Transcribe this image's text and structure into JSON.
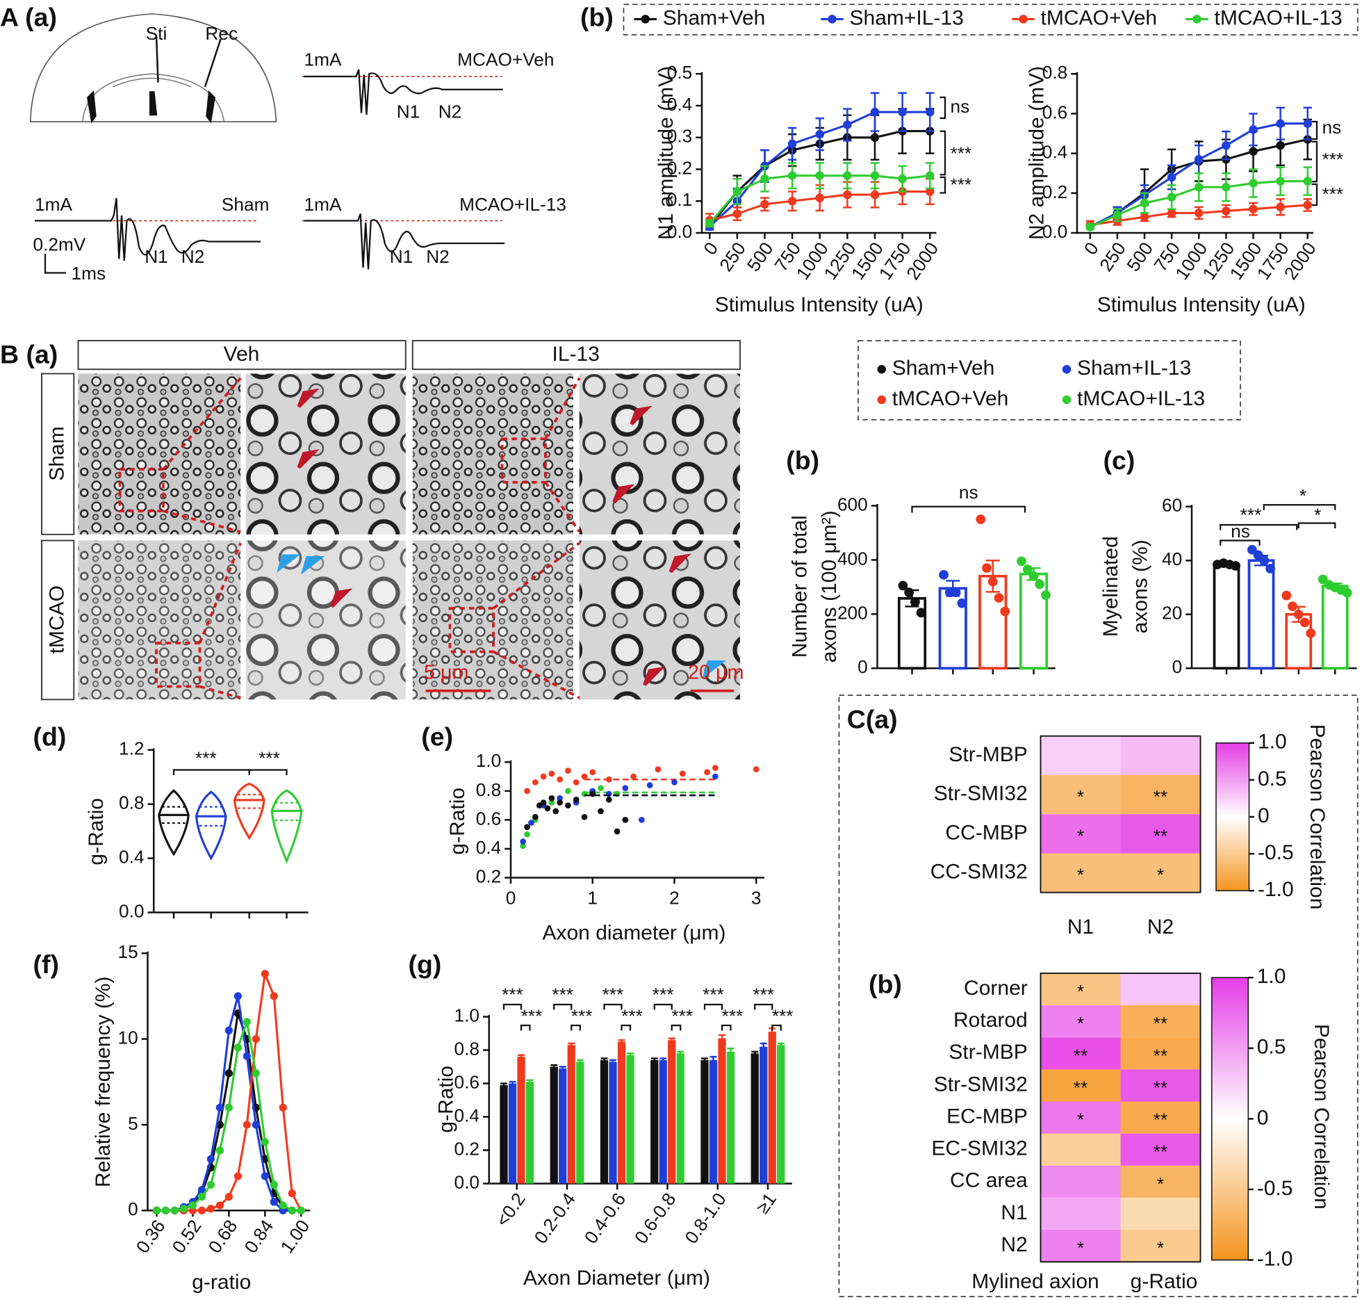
{
  "figure": {
    "panel_A": "A (a)",
    "panel_B": "B (a)"
  },
  "schematic": {
    "stimulus": "Sti",
    "recording": "Rec",
    "scale_y": "0.2mV",
    "scale_x": "1ms",
    "traces": [
      {
        "current": "1mA",
        "label": "MCAO+Veh",
        "peaks": [
          "N1",
          "N2"
        ]
      },
      {
        "current": "1mA",
        "label": "Sham",
        "peaks": [
          "N1",
          "N2"
        ]
      },
      {
        "current": "1mA",
        "label": "MCAO+IL-13",
        "peaks": [
          "N1",
          "N2"
        ]
      }
    ]
  },
  "micrographs": {
    "columns": [
      "Veh",
      "IL-13"
    ],
    "rows": [
      "Sham",
      "tMCAO"
    ],
    "scale_bars": [
      "5 μm",
      "20 μm"
    ]
  },
  "chart_data": [
    {
      "type": "line",
      "panel": "(b)",
      "ylabel": "N1 amplitude (mV)",
      "xlabel": "Stimulus Intensity (uA)",
      "categories": [
        "0",
        "250",
        "500",
        "750",
        "1000",
        "1250",
        "1500",
        "1750",
        "2000"
      ],
      "ylim": [
        0,
        0.5
      ],
      "yticks": [
        {
          "value": 0,
          "label": "0.0"
        },
        0.1,
        0.2,
        0.3,
        0.4,
        0.5
      ],
      "series": [
        {
          "name": "Sham+Veh",
          "color": "#111111",
          "values": [
            0.02,
            0.13,
            0.21,
            0.26,
            0.28,
            0.3,
            0.3,
            0.32,
            0.32
          ],
          "errors": [
            0.01,
            0.05,
            0.05,
            0.05,
            0.05,
            0.07,
            0.07,
            0.07,
            0.07
          ]
        },
        {
          "name": "Sham+IL-13",
          "color": "#1f3fd8",
          "values": [
            0.02,
            0.1,
            0.21,
            0.28,
            0.31,
            0.34,
            0.38,
            0.38,
            0.38
          ],
          "errors": [
            0.01,
            0.04,
            0.05,
            0.05,
            0.05,
            0.05,
            0.06,
            0.06,
            0.06
          ]
        },
        {
          "name": "tMCAO+Veh",
          "color": "#f03a1e",
          "values": [
            0.04,
            0.06,
            0.09,
            0.1,
            0.11,
            0.12,
            0.12,
            0.13,
            0.13
          ],
          "errors": [
            0.02,
            0.02,
            0.02,
            0.03,
            0.04,
            0.04,
            0.04,
            0.04,
            0.04
          ]
        },
        {
          "name": "tMCAO+IL-13",
          "color": "#2ecc30",
          "values": [
            0.03,
            0.13,
            0.17,
            0.18,
            0.18,
            0.18,
            0.18,
            0.17,
            0.18
          ],
          "errors": [
            0.01,
            0.04,
            0.04,
            0.04,
            0.04,
            0.04,
            0.04,
            0.04,
            0.04
          ]
        }
      ],
      "annotations": [
        "ns",
        "***",
        "***"
      ]
    },
    {
      "type": "line",
      "ylabel": "N2 amplitude (mV)",
      "xlabel": "Stimulus Intensity (uA)",
      "categories": [
        "0",
        "250",
        "500",
        "750",
        "1000",
        "1250",
        "1500",
        "1750",
        "2000"
      ],
      "ylim": [
        0,
        0.8
      ],
      "yticks": [
        {
          "value": 0,
          "label": "0.0"
        },
        0.2,
        0.4,
        0.6,
        0.8
      ],
      "series": [
        {
          "color": "#111111",
          "values": [
            0.03,
            0.1,
            0.2,
            0.32,
            0.36,
            0.37,
            0.41,
            0.44,
            0.47
          ],
          "errors": [
            0.01,
            0.03,
            0.12,
            0.1,
            0.1,
            0.1,
            0.1,
            0.1,
            0.1
          ]
        },
        {
          "color": "#1f3fd8",
          "values": [
            0.03,
            0.1,
            0.19,
            0.28,
            0.37,
            0.44,
            0.52,
            0.55,
            0.55
          ],
          "errors": [
            0.01,
            0.03,
            0.05,
            0.06,
            0.07,
            0.07,
            0.08,
            0.08,
            0.08
          ]
        },
        {
          "color": "#f03a1e",
          "values": [
            0.04,
            0.06,
            0.08,
            0.1,
            0.1,
            0.11,
            0.12,
            0.13,
            0.14
          ],
          "errors": [
            0.02,
            0.02,
            0.02,
            0.02,
            0.03,
            0.03,
            0.03,
            0.04,
            0.03
          ]
        },
        {
          "color": "#2ecc30",
          "values": [
            0.03,
            0.09,
            0.15,
            0.18,
            0.23,
            0.23,
            0.25,
            0.26,
            0.26
          ],
          "errors": [
            0.01,
            0.03,
            0.05,
            0.06,
            0.07,
            0.07,
            0.07,
            0.07,
            0.07
          ]
        }
      ],
      "annotations": [
        "ns",
        "***",
        "***"
      ]
    },
    {
      "type": "bar",
      "panel": "(b)",
      "ylabel": [
        "Number of  total",
        "axons (100 μm²)"
      ],
      "ylim": [
        0,
        600
      ],
      "yticks": [
        0,
        200,
        400,
        600
      ],
      "series": [
        {
          "name": "Sham+Veh",
          "color": "#111111",
          "values": [
            258
          ],
          "errors": [
            30
          ],
          "points": [
            305,
            280,
            245,
            205
          ]
        },
        {
          "name": "Sham+IL-13",
          "color": "#1f3fd8",
          "values": [
            295
          ],
          "errors": [
            28
          ],
          "points": [
            345,
            280,
            280,
            240
          ]
        },
        {
          "name": "tMCAO+Veh",
          "color": "#f03a1e",
          "values": [
            340
          ],
          "errors": [
            58
          ],
          "points": [
            550,
            370,
            320,
            260,
            210
          ]
        },
        {
          "name": "tMCAO+IL-13",
          "color": "#2ecc30",
          "values": [
            348
          ],
          "errors": [
            22
          ],
          "points": [
            395,
            365,
            340,
            310,
            270
          ]
        }
      ],
      "annotations": [
        "ns"
      ]
    },
    {
      "type": "bar",
      "panel": "(c)",
      "ylabel": [
        "Myelinated",
        "axons (%)"
      ],
      "ylim": [
        0,
        60
      ],
      "yticks": [
        0,
        20,
        40,
        60
      ],
      "series": [
        {
          "color": "#111111",
          "values": [
            38.5
          ],
          "errors": [
            0.5
          ],
          "points": [
            38.5,
            39,
            38.5,
            38
          ]
        },
        {
          "color": "#1f3fd8",
          "values": [
            40
          ],
          "errors": [
            1.8
          ],
          "points": [
            44,
            42,
            40,
            37
          ]
        },
        {
          "color": "#f03a1e",
          "values": [
            20
          ],
          "errors": [
            2.8
          ],
          "points": [
            27,
            23,
            20,
            17,
            13
          ]
        },
        {
          "color": "#2ecc30",
          "values": [
            30.5
          ],
          "errors": [
            1
          ],
          "points": [
            33,
            31,
            30,
            29,
            28
          ]
        }
      ],
      "annotations": [
        "ns",
        "***",
        "*",
        "*"
      ]
    },
    {
      "type": "violin",
      "panel": "(d)",
      "ylabel": "g-Ratio",
      "ylim": [
        0,
        1.2
      ],
      "yticks": [
        {
          "value": 0,
          "label": "0.0"
        },
        0.4,
        0.8,
        1.2
      ],
      "series": [
        {
          "color": "#111111",
          "min": 0.43,
          "q1": 0.66,
          "median": 0.72,
          "q3": 0.78,
          "max": 0.9
        },
        {
          "color": "#1f3fd8",
          "min": 0.4,
          "q1": 0.64,
          "median": 0.71,
          "q3": 0.78,
          "max": 0.89
        },
        {
          "color": "#f03a1e",
          "min": 0.55,
          "q1": 0.77,
          "median": 0.83,
          "q3": 0.87,
          "max": 0.95
        },
        {
          "color": "#2ecc30",
          "min": 0.38,
          "q1": 0.68,
          "median": 0.75,
          "q3": 0.81,
          "max": 0.9
        }
      ],
      "annotations": [
        "***",
        "***"
      ]
    },
    {
      "type": "scatter",
      "panel": "(e)",
      "ylabel": "g-Ratio",
      "xlabel": "Axon diameter (μm)",
      "xlim": [
        0,
        3.1
      ],
      "xticks": [
        0,
        1,
        2,
        3
      ],
      "ylim": [
        0.2,
        1.0
      ],
      "yticks": [
        0.2,
        0.4,
        0.6,
        0.8,
        {
          "value": 1,
          "label": "1.0"
        }
      ],
      "series": [
        {
          "color": "#111111",
          "x": [
            0.2,
            0.3,
            0.35,
            0.4,
            0.45,
            0.5,
            0.55,
            0.6,
            0.7,
            0.8,
            0.9,
            1.0,
            1.1,
            1.2,
            1.3,
            1.4
          ],
          "values": [
            0.55,
            0.62,
            0.7,
            0.72,
            0.68,
            0.75,
            0.66,
            0.72,
            0.7,
            0.74,
            0.62,
            0.78,
            0.66,
            0.74,
            0.52,
            0.6
          ],
          "fit": 0.77
        },
        {
          "color": "#1f3fd8",
          "x": [
            0.15,
            0.25,
            0.4,
            0.6,
            0.8,
            1.0,
            1.2,
            1.4,
            1.6,
            1.7,
            2.0,
            2.5
          ],
          "values": [
            0.45,
            0.58,
            0.7,
            0.75,
            0.72,
            0.8,
            0.78,
            0.82,
            0.6,
            0.84,
            0.86,
            0.9
          ],
          "fit": 0.77
        },
        {
          "color": "#f03a1e",
          "x": [
            0.2,
            0.3,
            0.4,
            0.5,
            0.6,
            0.7,
            0.8,
            0.9,
            1.0,
            1.2,
            1.5,
            1.8,
            2.1,
            2.4,
            2.5,
            3.0
          ],
          "values": [
            0.8,
            0.86,
            0.9,
            0.92,
            0.88,
            0.94,
            0.86,
            0.9,
            0.93,
            0.88,
            0.9,
            0.95,
            0.92,
            0.93,
            0.96,
            0.95
          ],
          "fit": 0.88
        },
        {
          "color": "#2ecc30",
          "x": [
            0.15,
            0.2,
            0.3,
            0.5,
            0.7,
            0.9,
            1.1,
            1.3
          ],
          "values": [
            0.42,
            0.5,
            0.6,
            0.72,
            0.8,
            0.78,
            0.82,
            0.78
          ],
          "fit": 0.79
        }
      ]
    },
    {
      "type": "line",
      "panel": "(f)",
      "ylabel": "Relative frequency (%)",
      "xlabel": "g-ratio",
      "x": [
        0.36,
        0.4,
        0.44,
        0.48,
        0.52,
        0.56,
        0.6,
        0.64,
        0.68,
        0.72,
        0.76,
        0.8,
        0.84,
        0.88,
        0.92,
        0.96,
        1.0
      ],
      "xlim": [
        0.32,
        1.04
      ],
      "xticks": [
        0.36,
        0.52,
        0.68,
        0.84,
        {
          "value": 1,
          "label": "1.00"
        }
      ],
      "ylim": [
        0,
        15
      ],
      "yticks": [
        0,
        5,
        10,
        15
      ],
      "series": [
        {
          "color": "#111111",
          "values": [
            0,
            0,
            0,
            0.1,
            0.3,
            1.0,
            2.5,
            5,
            8,
            11.5,
            10,
            6,
            3,
            1,
            0.2,
            0,
            0
          ]
        },
        {
          "color": "#1f3fd8",
          "values": [
            0,
            0,
            0,
            0.2,
            0.5,
            1.2,
            3,
            6,
            10.5,
            12.5,
            9,
            5,
            2,
            0.5,
            0,
            0,
            0
          ]
        },
        {
          "color": "#f03a1e",
          "values": [
            0,
            0,
            0,
            0,
            0,
            0,
            0.1,
            0.3,
            0.8,
            2,
            5,
            10,
            13.8,
            12.5,
            6,
            1,
            0
          ]
        },
        {
          "color": "#2ecc30",
          "values": [
            0,
            0,
            0,
            0.1,
            0.3,
            0.8,
            1.5,
            3.5,
            6,
            9.5,
            11,
            8,
            4,
            1.5,
            0.3,
            0,
            0
          ]
        }
      ]
    },
    {
      "type": "groupbar",
      "panel": "(g)",
      "ylabel": "g-Ratio",
      "xlabel": "Axon Diameter (μm)",
      "categories": [
        "<0.2",
        "0.2-0.4",
        "0.4-0.6",
        "0.6-0.8",
        "0.8-1.0",
        "≥1"
      ],
      "ylim": [
        0,
        1.0
      ],
      "yticks": [
        {
          "value": 0,
          "label": "0.0"
        },
        0.2,
        0.4,
        0.6,
        0.8,
        {
          "value": 1,
          "label": "1.0"
        }
      ],
      "series": [
        {
          "color": "#111111",
          "values": [
            0.59,
            0.7,
            0.74,
            0.74,
            0.74,
            0.78
          ],
          "errors": [
            0.01,
            0.01,
            0.01,
            0.01,
            0.01,
            0.01
          ]
        },
        {
          "color": "#1f3fd8",
          "values": [
            0.6,
            0.69,
            0.73,
            0.74,
            0.74,
            0.82
          ],
          "errors": [
            0.01,
            0.01,
            0.01,
            0.01,
            0.02,
            0.02
          ]
        },
        {
          "color": "#f03a1e",
          "values": [
            0.76,
            0.83,
            0.85,
            0.86,
            0.87,
            0.91
          ],
          "errors": [
            0.01,
            0.01,
            0.01,
            0.01,
            0.02,
            0.02
          ]
        },
        {
          "color": "#2ecc30",
          "values": [
            0.61,
            0.73,
            0.77,
            0.78,
            0.79,
            0.83
          ],
          "errors": [
            0.01,
            0.01,
            0.01,
            0.01,
            0.02,
            0.01
          ]
        }
      ],
      "annotations": [
        "***",
        "***",
        "***",
        "***",
        "***",
        "***",
        "***",
        "***",
        "***",
        "***",
        "***",
        "***"
      ]
    },
    {
      "type": "heatmap",
      "panel": "C(a)",
      "rows": [
        "Str-MBP",
        "Str-SMI32",
        "CC-MBP",
        "CC-SMI32"
      ],
      "columns": [
        "N1",
        "N2"
      ],
      "values": [
        [
          0.25,
          0.35
        ],
        [
          -0.6,
          -0.7
        ],
        [
          0.75,
          0.85
        ],
        [
          -0.6,
          -0.6
        ]
      ],
      "stars": [
        [
          null,
          null
        ],
        [
          "*",
          "**"
        ],
        [
          "*",
          "**"
        ],
        [
          "*",
          "*"
        ]
      ],
      "clim": [
        -1,
        1
      ],
      "colormap": [
        "#f5941f",
        "#ffffff",
        "#e53de6"
      ],
      "colorbar_label": "Pearson Correlation",
      "cticks": [
        {
          "value": 1,
          "label": "1.0"
        },
        0.5,
        0,
        -0.5,
        {
          "value": -1,
          "label": "-1.0"
        }
      ]
    },
    {
      "type": "heatmap",
      "panel": "(b)",
      "rows": [
        "Corner",
        "Rotarod",
        "Str-MBP",
        "Str-SMI32",
        "EC-MBP",
        "EC-SMI32",
        "CC area",
        "N1",
        "N2"
      ],
      "columns": [
        "Mylined axion",
        "g-Ratio"
      ],
      "values": [
        [
          -0.55,
          0.3
        ],
        [
          0.65,
          -0.75
        ],
        [
          0.9,
          -0.8
        ],
        [
          -0.85,
          0.85
        ],
        [
          0.7,
          -0.8
        ],
        [
          -0.45,
          0.85
        ],
        [
          0.6,
          -0.7
        ],
        [
          0.45,
          -0.35
        ],
        [
          0.65,
          -0.5
        ]
      ],
      "stars": [
        [
          "*",
          null
        ],
        [
          "*",
          "**"
        ],
        [
          "**",
          "**"
        ],
        [
          "**",
          "**"
        ],
        [
          "*",
          "**"
        ],
        [
          null,
          "**"
        ],
        [
          null,
          "*"
        ],
        [
          null,
          null
        ],
        [
          "*",
          "*"
        ]
      ],
      "clim": [
        -1,
        1
      ],
      "colormap": [
        "#f5941f",
        "#ffffff",
        "#e53de6"
      ],
      "colorbar_label": "Pearson Correlation",
      "cticks": [
        {
          "value": 1,
          "label": "1.0"
        },
        0.5,
        0,
        -0.5,
        {
          "value": -1,
          "label": "-1.0"
        }
      ]
    }
  ]
}
